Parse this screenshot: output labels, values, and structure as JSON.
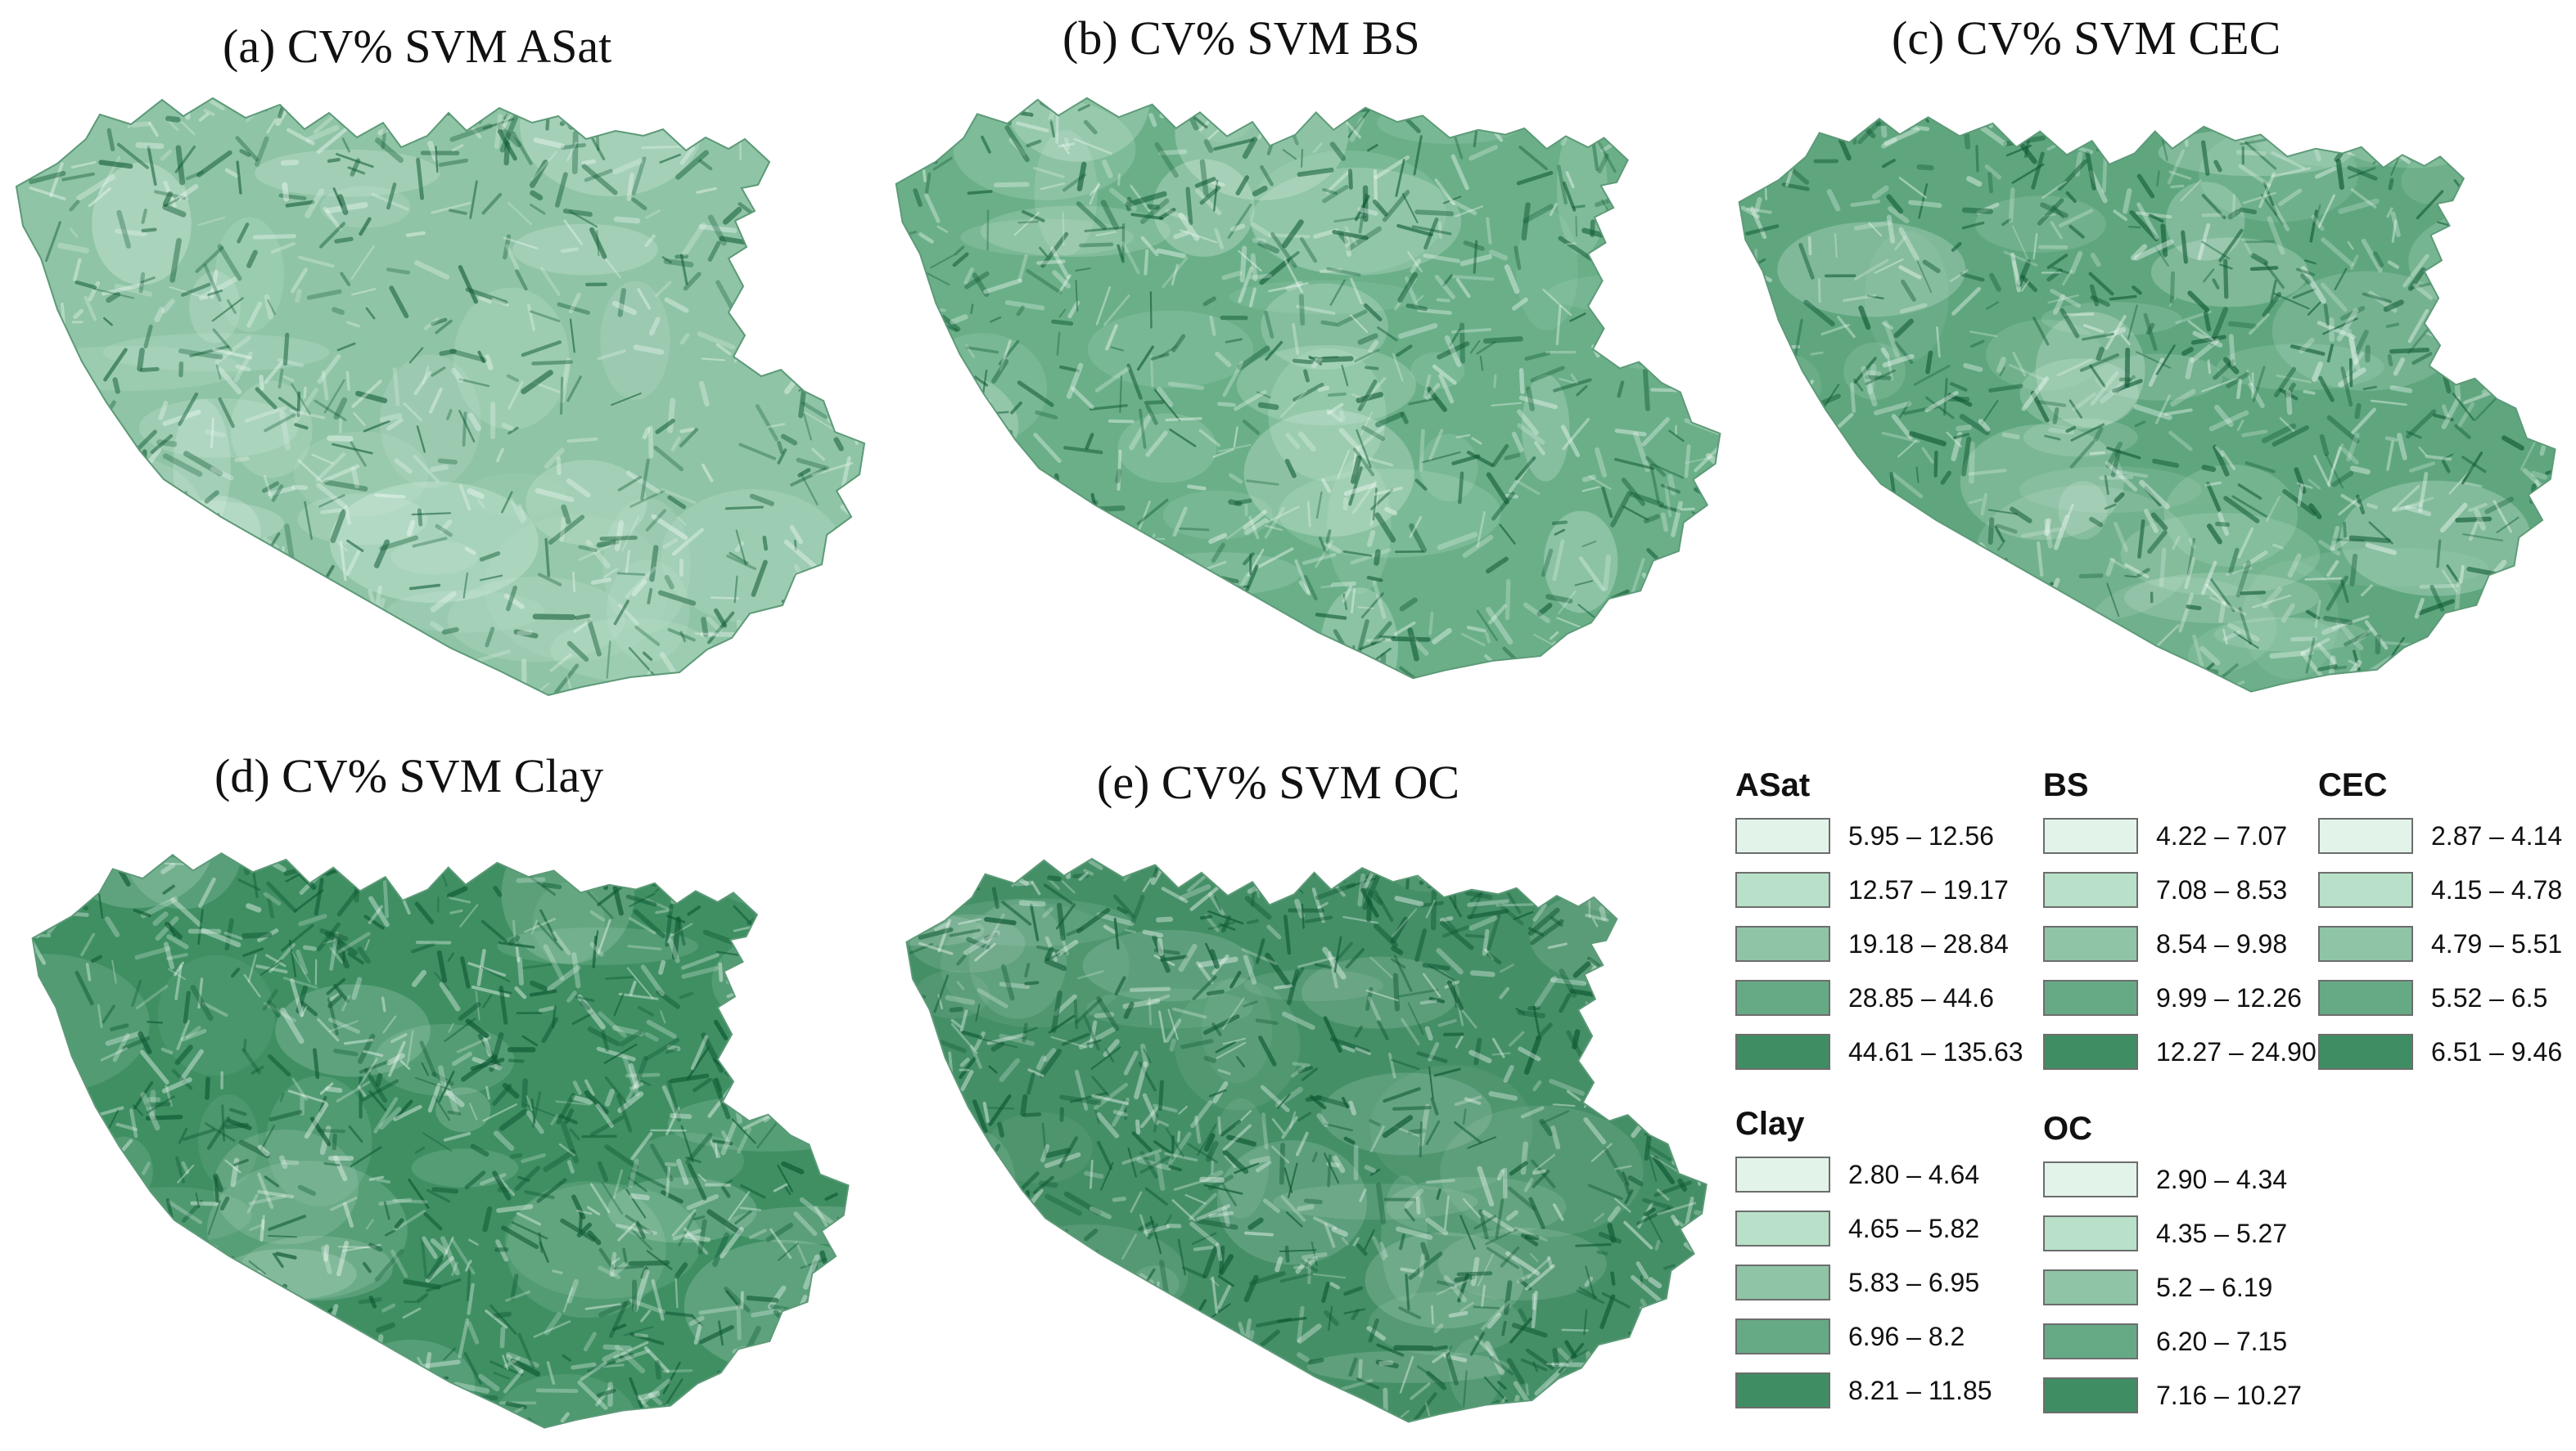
{
  "panels": [
    {
      "id": "a",
      "title": "(a) CV% SVM ASat",
      "tone": "#8fc4a6",
      "relief": 0.55
    },
    {
      "id": "b",
      "title": "(b) CV% SVM BS",
      "tone": "#6aaf88",
      "relief": 0.6
    },
    {
      "id": "c",
      "title": "(c) CV% SVM CEC",
      "tone": "#5fa67e",
      "relief": 0.65
    },
    {
      "id": "d",
      "title": "(d) CV% SVM Clay",
      "tone": "#3f8f63",
      "relief": 0.75
    },
    {
      "id": "e",
      "title": "(e) CV% SVM OC",
      "tone": "#458f67",
      "relief": 0.8
    }
  ],
  "legend": {
    "class_colors": [
      "#e2f4ea",
      "#b9e0c9",
      "#8fc4a6",
      "#66aa85",
      "#3f8e63"
    ],
    "groups": [
      {
        "name": "ASat",
        "classes": [
          "5.95 – 12.56",
          "12.57 – 19.17",
          "19.18 – 28.84",
          "28.85 – 44.6",
          "44.61 – 135.63"
        ]
      },
      {
        "name": "BS",
        "classes": [
          "4.22 – 7.07",
          "7.08 – 8.53",
          "8.54 – 9.98",
          "9.99 – 12.26",
          "12.27 – 24.90"
        ]
      },
      {
        "name": "CEC",
        "classes": [
          "2.87 – 4.14",
          "4.15 – 4.78",
          "4.79 – 5.51",
          "5.52 – 6.5",
          "6.51 – 9.46"
        ]
      },
      {
        "name": "Clay",
        "classes": [
          "2.80 – 4.64",
          "4.65 – 5.82",
          "5.83 – 6.95",
          "6.96 – 8.2",
          "8.21 – 11.85"
        ]
      },
      {
        "name": "OC",
        "classes": [
          "2.90 – 4.34",
          "4.35 – 5.27",
          "5.2 – 6.19",
          "6.20 – 7.15",
          "7.16 – 10.27"
        ]
      }
    ]
  }
}
